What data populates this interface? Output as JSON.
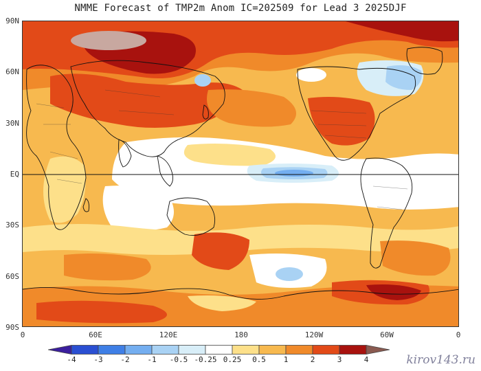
{
  "title": "NMME Forecast of TMP2m Anom IC=202509 for Lead 3 2025DJF",
  "lat_labels": [
    "90N",
    "60N",
    "30N",
    "EQ",
    "30S",
    "60S",
    "90S"
  ],
  "lon_labels": [
    "0",
    "60E",
    "120E",
    "180",
    "120W",
    "60W",
    "0"
  ],
  "colorbar": {
    "labels": [
      "-4",
      "-3",
      "-2",
      "-1",
      "-0.5",
      "-0.25",
      "0.25",
      "0.5",
      "1",
      "2",
      "3",
      "4"
    ],
    "colors": [
      "#3b1f9e",
      "#2a4fd2",
      "#3f7fe6",
      "#74aef0",
      "#a9d2f4",
      "#d8eef8",
      "#ffffff",
      "#fde08a",
      "#f7b94f",
      "#f08a2a",
      "#e24a18",
      "#a8120e",
      "#8a5a50"
    ]
  },
  "anomaly_colors": {
    "neutral": "#ffffff",
    "light": "#fde08a",
    "moderate": "#f7b94f",
    "strong": "#f08a2a",
    "very_strong": "#e24a18",
    "extreme": "#a8120e",
    "max": "#c8a8a0",
    "cool_light": "#d8eef8",
    "cool": "#a9d2f4",
    "cool_mid": "#74aef0"
  },
  "watermark": "kirov143.ru"
}
